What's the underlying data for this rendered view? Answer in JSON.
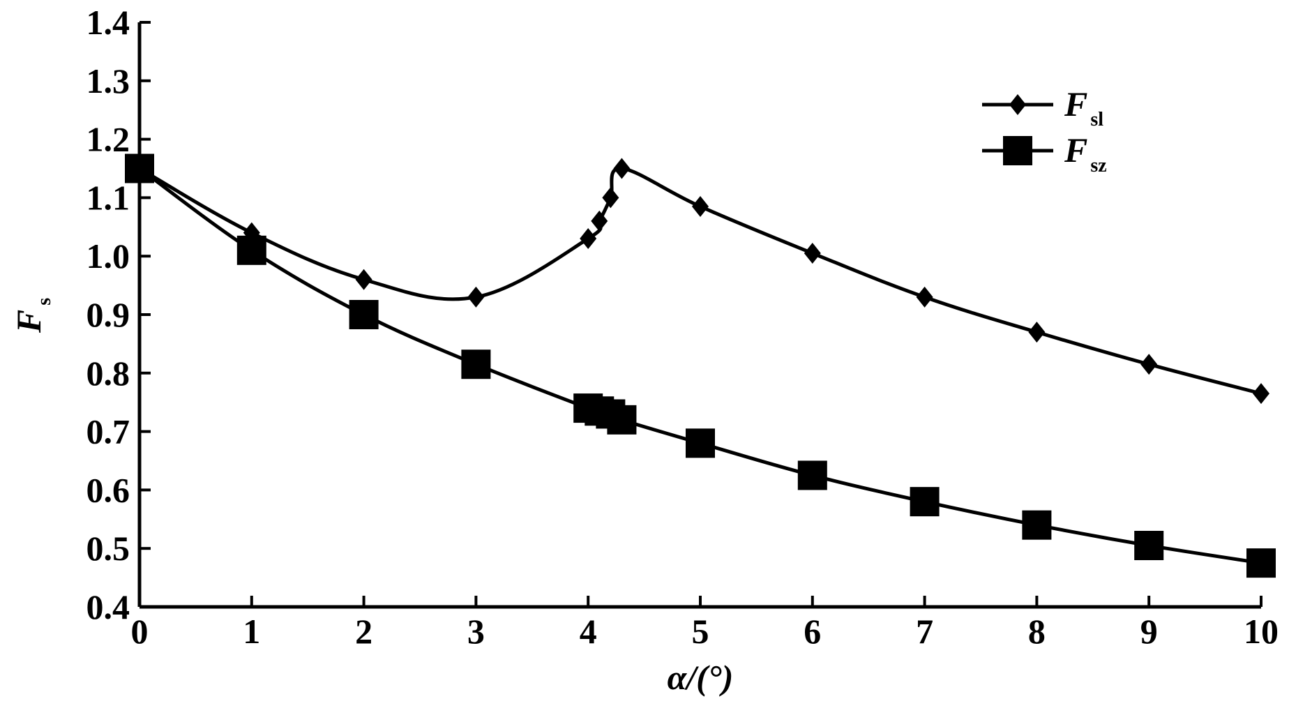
{
  "chart_data": {
    "type": "line",
    "xlabel": "α/(°)",
    "ylabel": "F",
    "ylabel_subscript": "s",
    "xlim": [
      0,
      10
    ],
    "ylim": [
      0.4,
      1.4
    ],
    "xticks": [
      0,
      1,
      2,
      3,
      4,
      5,
      6,
      7,
      8,
      9,
      10
    ],
    "yticks": [
      "0.4",
      "0.5",
      "0.6",
      "0.7",
      "0.8",
      "0.9",
      "1.0",
      "1.1",
      "1.2",
      "1.3",
      "1.4"
    ],
    "grid": false,
    "legend_position": "top-right",
    "series": [
      {
        "name": "F",
        "name_subscript": "sl",
        "marker": "diamond",
        "color": "#000000",
        "x": [
          0,
          1,
          2,
          3,
          4,
          4.1,
          4.2,
          4.3,
          5,
          6,
          7,
          8,
          9,
          10
        ],
        "y": [
          1.15,
          1.04,
          0.96,
          0.93,
          1.03,
          1.06,
          1.1,
          1.15,
          1.085,
          1.005,
          0.93,
          0.87,
          0.815,
          0.765
        ]
      },
      {
        "name": "F",
        "name_subscript": "sz",
        "marker": "square",
        "color": "#000000",
        "x": [
          0,
          1,
          2,
          3,
          4,
          4.1,
          4.2,
          4.3,
          5,
          6,
          7,
          8,
          9,
          10
        ],
        "y": [
          1.15,
          1.01,
          0.9,
          0.815,
          0.74,
          0.735,
          0.73,
          0.72,
          0.68,
          0.625,
          0.58,
          0.54,
          0.505,
          0.475
        ]
      }
    ]
  }
}
